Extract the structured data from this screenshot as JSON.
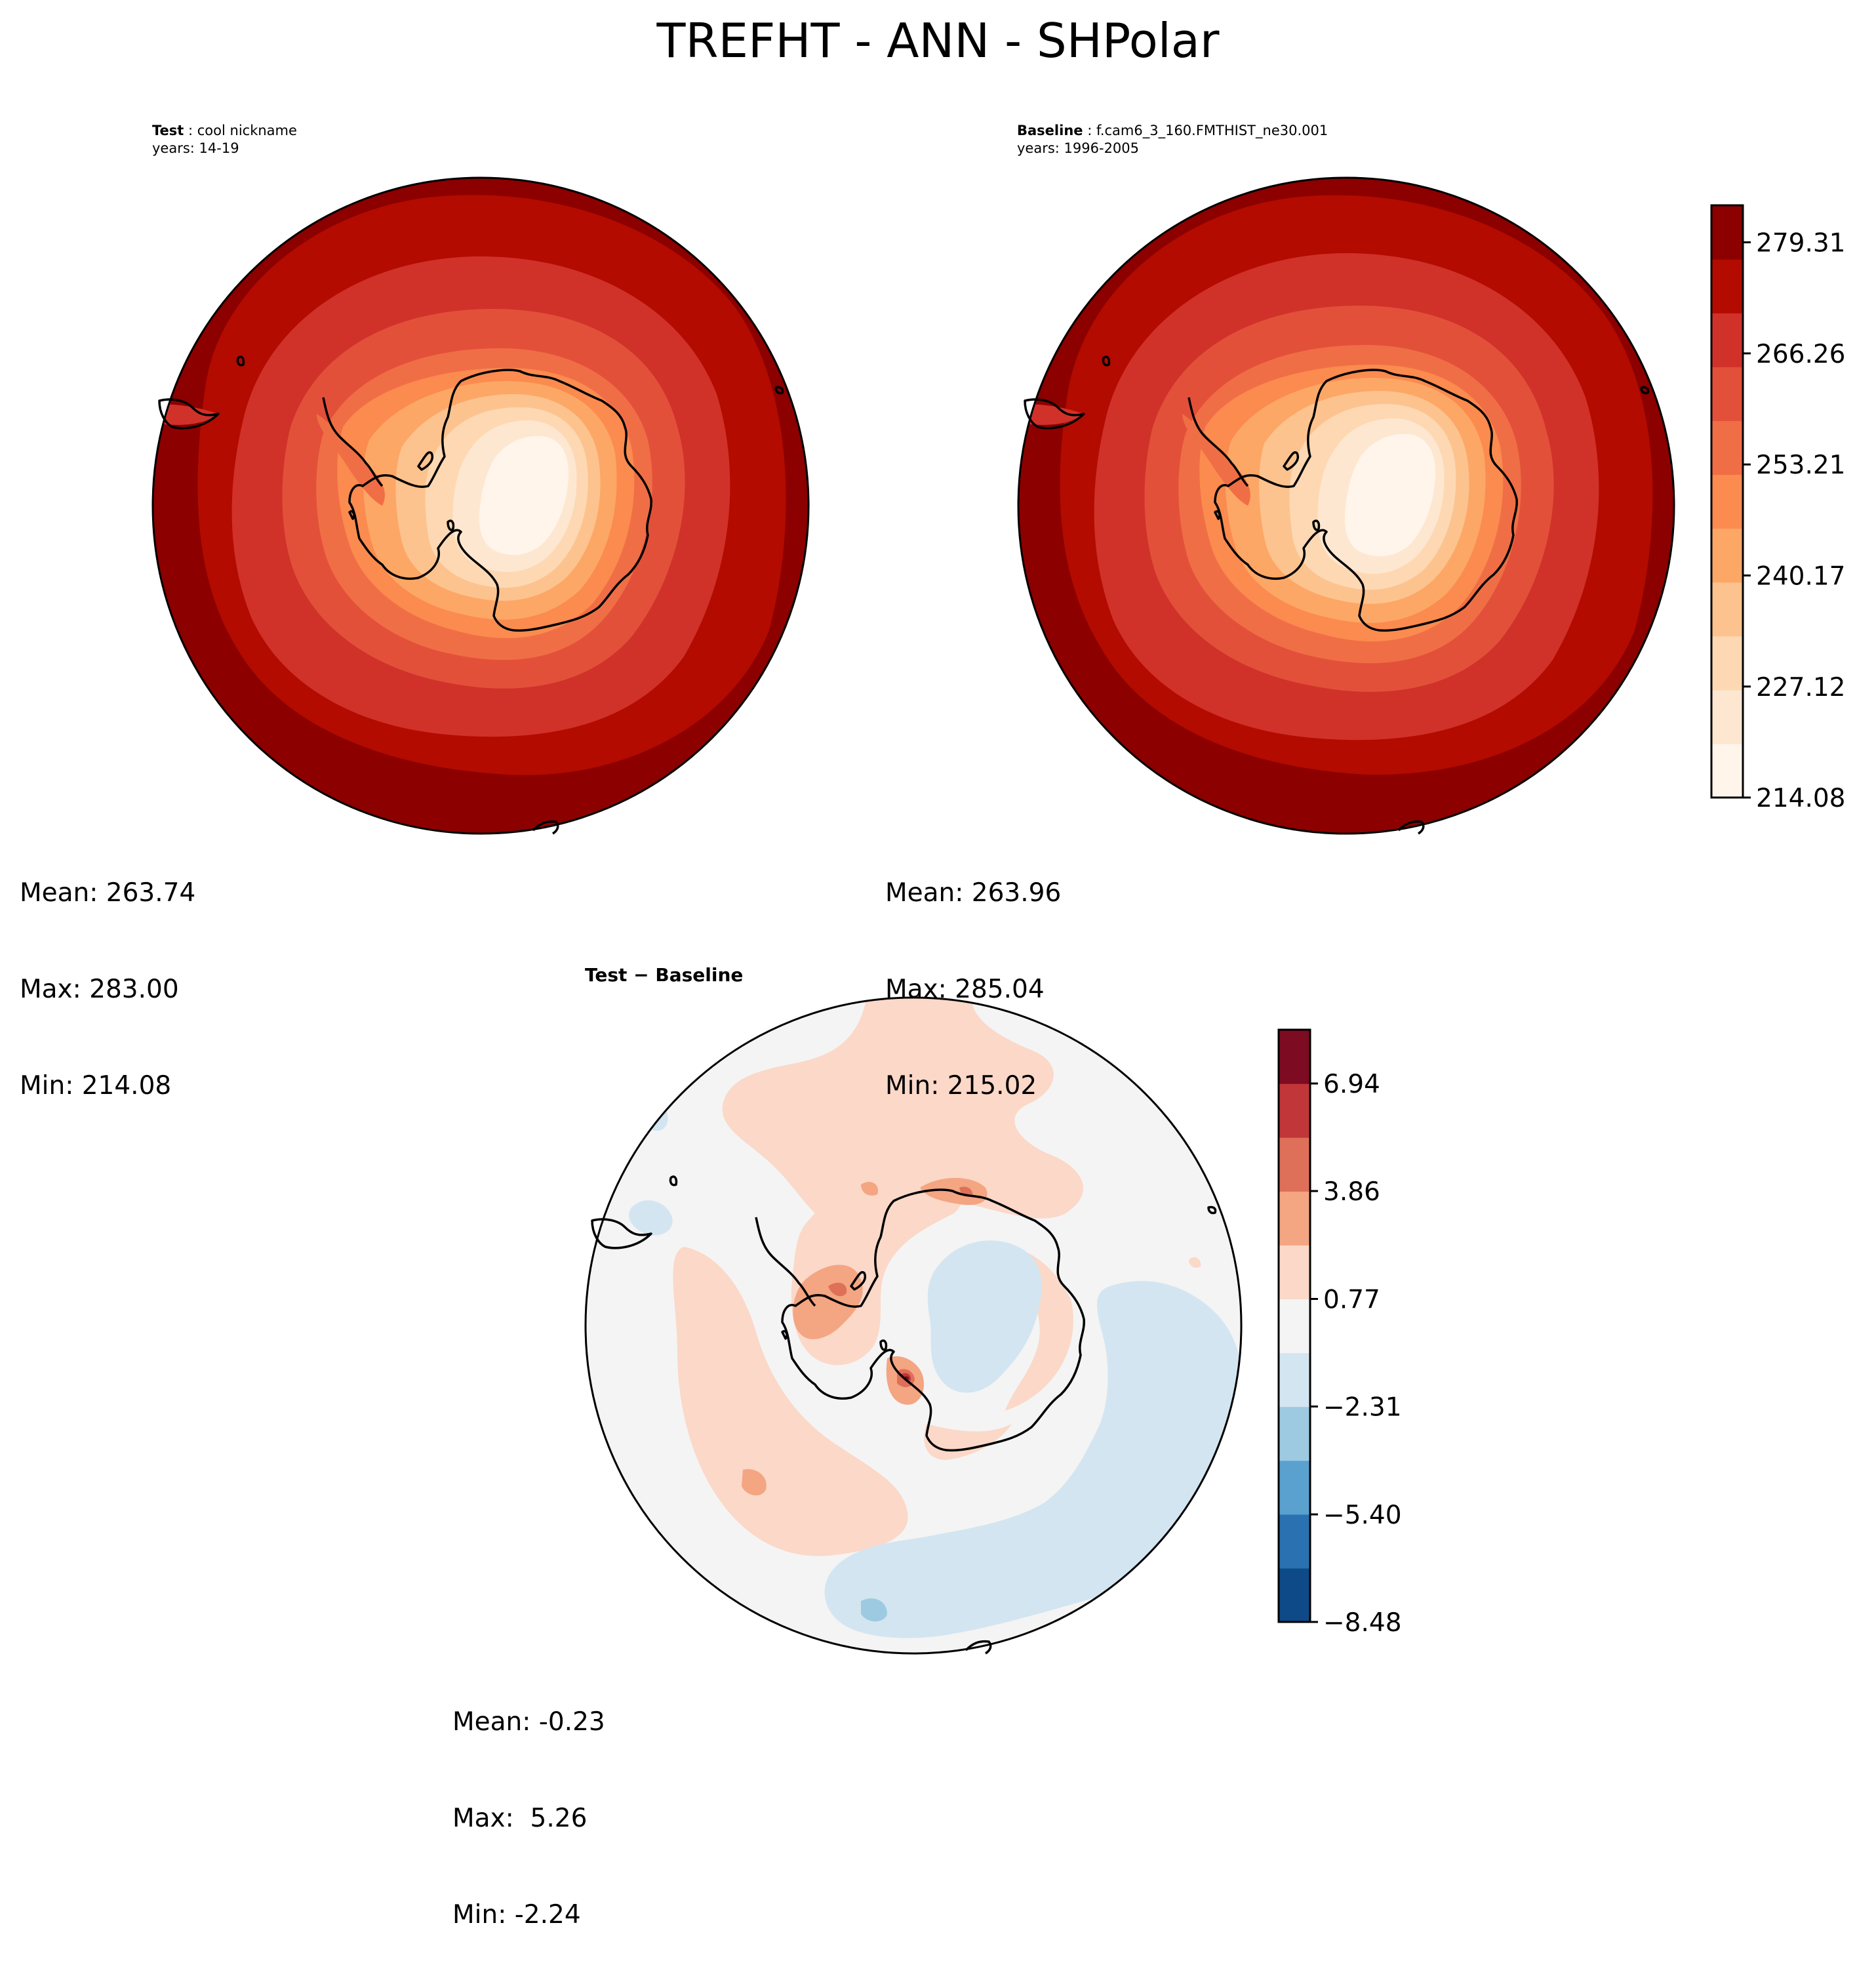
{
  "figure": {
    "title": "TREFHT - ANN - SHPolar",
    "test_panel": {
      "label": "Test",
      "name": "cool nickname",
      "years": "years: 14-19",
      "mean": "Mean: 263.74",
      "max": "Max: 283.00",
      "min": "Min: 214.08"
    },
    "baseline_panel": {
      "label": "Baseline",
      "name": "f.cam6_3_160.FMTHIST_ne30.001",
      "years": "years: 1996-2005",
      "mean": "Mean: 263.96",
      "max": "Max: 285.04",
      "min": "Min: 215.02"
    },
    "diff_panel": {
      "title": "Test − Baseline",
      "mean": "Mean: -0.23",
      "max": "Max:  5.26",
      "min": "Min: -2.24"
    }
  },
  "chart_data": [
    {
      "type": "heatmap",
      "panel": "Test",
      "projection": "south polar stereographic",
      "variable": "TREFHT",
      "levels": [
        214.08,
        218.43,
        222.78,
        227.12,
        231.47,
        235.82,
        240.17,
        244.52,
        248.86,
        253.21,
        257.56,
        261.91,
        266.26,
        270.61,
        274.96,
        279.31,
        283.66
      ],
      "colors": [
        "#fff5eb",
        "#fee7d0",
        "#fdd1a5",
        "#fdb97d",
        "#fd9c51",
        "#f88d59",
        "#ef6548",
        "#e34a33",
        "#cb2a1f",
        "#b30000",
        "#8a0000"
      ],
      "stats": {
        "mean": 263.74,
        "max": 283.0,
        "min": 214.08
      }
    },
    {
      "type": "heatmap",
      "panel": "Baseline",
      "projection": "south polar stereographic",
      "variable": "TREFHT",
      "levels": [
        214.08,
        218.43,
        222.78,
        227.12,
        231.47,
        235.82,
        240.17,
        244.52,
        248.86,
        253.21,
        257.56,
        261.91,
        266.26,
        270.61,
        274.96,
        279.31,
        283.66
      ],
      "stats": {
        "mean": 263.96,
        "max": 285.04,
        "min": 215.02
      }
    },
    {
      "type": "heatmap",
      "panel": "Test - Baseline",
      "projection": "south polar stereographic",
      "levels": [
        -8.48,
        -6.94,
        -5.4,
        -3.86,
        -2.31,
        -0.77,
        0.77,
        2.31,
        3.86,
        5.4,
        6.94,
        8.48
      ],
      "colors": [
        "#0d4a87",
        "#2a71b2",
        "#5aa1cf",
        "#9dcae1",
        "#d3e5f0",
        "#f4f4f4",
        "#fbd8c8",
        "#f4a582",
        "#de6f58",
        "#c13639",
        "#7d0b22"
      ],
      "stats": {
        "mean": -0.23,
        "max": 5.26,
        "min": -2.24
      }
    }
  ],
  "colorbars": {
    "main": {
      "ticks": [
        "279.31",
        "266.26",
        "253.21",
        "240.17",
        "227.12",
        "214.08"
      ],
      "tick_values": [
        279.31,
        266.26,
        253.21,
        240.17,
        227.12,
        214.08
      ],
      "range": [
        214.08,
        283.66
      ],
      "colors": [
        "#fff5eb",
        "#fee7d0",
        "#fdd8b3",
        "#fdc38e",
        "#fda766",
        "#fb8b4f",
        "#f06e45",
        "#e3503a",
        "#d0322a",
        "#b30b00",
        "#8c0000"
      ]
    },
    "diff": {
      "ticks": [
        "6.94",
        "3.86",
        "0.77",
        "−2.31",
        "−5.40",
        "−8.48"
      ],
      "tick_values": [
        6.94,
        3.86,
        0.77,
        -2.31,
        -5.4,
        -8.48
      ],
      "range": [
        -8.48,
        8.48
      ],
      "colors": [
        "#0d4a87",
        "#2a71b2",
        "#5aa1cf",
        "#9dcae1",
        "#d3e5f0",
        "#f4f4f4",
        "#fbd8c8",
        "#f4a582",
        "#de6f58",
        "#c13639",
        "#7d0b22"
      ]
    }
  }
}
